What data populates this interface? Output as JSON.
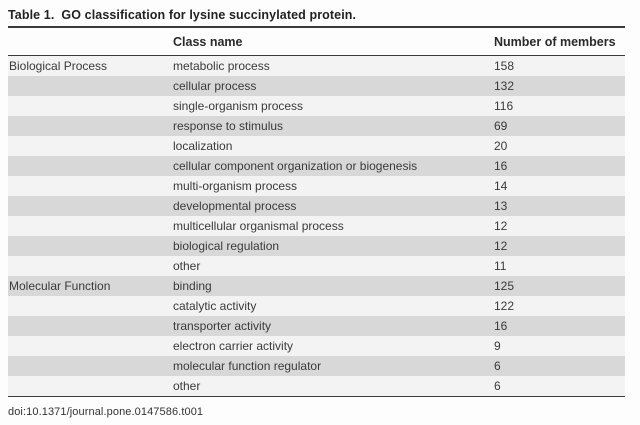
{
  "title": {
    "label": "Table 1.",
    "caption": "GO classification for lysine succinylated protein."
  },
  "table": {
    "headers": {
      "group": "",
      "class_name": "Class name",
      "members": "Number of members"
    },
    "rows": [
      {
        "group": "Biological Process",
        "class_name": "metabolic process",
        "members": "158"
      },
      {
        "group": "",
        "class_name": "cellular process",
        "members": "132"
      },
      {
        "group": "",
        "class_name": "single-organism process",
        "members": "116"
      },
      {
        "group": "",
        "class_name": "response to stimulus",
        "members": "69"
      },
      {
        "group": "",
        "class_name": "localization",
        "members": "20"
      },
      {
        "group": "",
        "class_name": "cellular component organization or biogenesis",
        "members": "16"
      },
      {
        "group": "",
        "class_name": "multi-organism process",
        "members": "14"
      },
      {
        "group": "",
        "class_name": "developmental process",
        "members": "13"
      },
      {
        "group": "",
        "class_name": "multicellular organismal process",
        "members": "12"
      },
      {
        "group": "",
        "class_name": "biological regulation",
        "members": "12"
      },
      {
        "group": "",
        "class_name": "other",
        "members": "11"
      },
      {
        "group": "Molecular Function",
        "class_name": "binding",
        "members": "125"
      },
      {
        "group": "",
        "class_name": "catalytic activity",
        "members": "122"
      },
      {
        "group": "",
        "class_name": "transporter activity",
        "members": "16"
      },
      {
        "group": "",
        "class_name": "electron carrier activity",
        "members": "9"
      },
      {
        "group": "",
        "class_name": "molecular function regulator",
        "members": "6"
      },
      {
        "group": "",
        "class_name": "other",
        "members": "6"
      }
    ]
  },
  "footer": {
    "doi": "doi:10.1371/journal.pone.0147586.t001"
  },
  "colors": {
    "row_light": "#f3f3f3",
    "row_dark": "#d8d8d8",
    "rule": "#3b3b3b"
  }
}
